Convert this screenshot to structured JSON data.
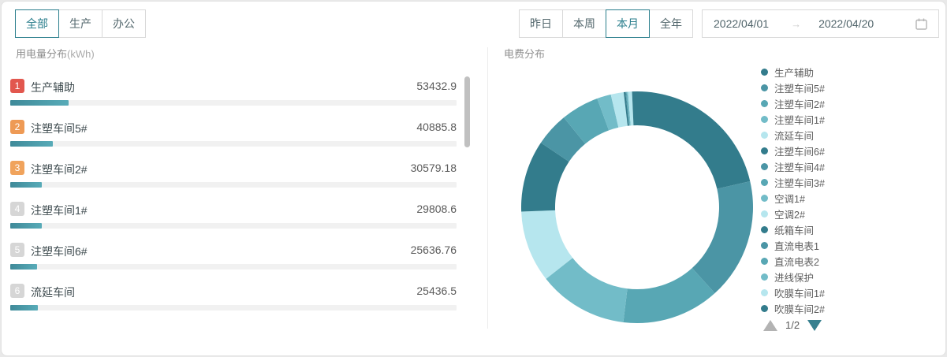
{
  "page": {
    "background": "#e9e9e9",
    "card_background": "#ffffff",
    "accent": "#2a7e8c"
  },
  "filters": {
    "category_tabs": [
      {
        "label": "全部",
        "selected": true
      },
      {
        "label": "生产",
        "selected": false
      },
      {
        "label": "办公",
        "selected": false
      }
    ],
    "period_tabs": [
      {
        "label": "昨日",
        "selected": false
      },
      {
        "label": "本周",
        "selected": false
      },
      {
        "label": "本月",
        "selected": true
      },
      {
        "label": "全年",
        "selected": false
      }
    ],
    "date_range": {
      "start": "2022/04/01",
      "separator": "→",
      "end": "2022/04/20"
    }
  },
  "consumption_panel": {
    "title": "用电量分布",
    "unit": "(kWh)",
    "items": [
      {
        "rank": "1",
        "name": "生产辅助",
        "value": "53432.9",
        "badge_color": "#e2574e",
        "bar_percent": 13.1
      },
      {
        "rank": "2",
        "name": "注塑车间5#",
        "value": "40885.8",
        "badge_color": "#ee9a55",
        "bar_percent": 9.6
      },
      {
        "rank": "3",
        "name": "注塑车间2#",
        "value": "30579.18",
        "badge_color": "#f0a35c",
        "bar_percent": 7.0
      },
      {
        "rank": "4",
        "name": "注塑车间1#",
        "value": "29808.6",
        "badge_color": "#d6d6d6",
        "bar_percent": 7.1
      },
      {
        "rank": "5",
        "name": "注塑车间6#",
        "value": "25636.76",
        "badge_color": "#d6d6d6",
        "bar_percent": 6.0
      },
      {
        "rank": "6",
        "name": "流延车间",
        "value": "25436.5",
        "badge_color": "#d6d6d6",
        "bar_percent": 6.2
      }
    ]
  },
  "cost_panel": {
    "title": "电费分布",
    "pagination": {
      "label": "1/2",
      "up_arrow_color": "#b3b3b3",
      "down_arrow_color": "#37808f"
    }
  },
  "chart_data": {
    "type": "pie",
    "subtype": "donut",
    "title": "电费分布",
    "legend_position": "right",
    "legend_pagination": "1/2",
    "start_angle_deg": 0,
    "clockwise": true,
    "palette": [
      "#337c8c",
      "#4b95a5",
      "#58a7b4",
      "#72bcc8",
      "#b6e6ee"
    ],
    "series": [
      {
        "name": "生产辅助",
        "percent": 21.4,
        "color": "#337c8c"
      },
      {
        "name": "注塑车间5#",
        "percent": 16.9,
        "color": "#4b95a5"
      },
      {
        "name": "注塑车间2#",
        "percent": 13.6,
        "color": "#58a7b4"
      },
      {
        "name": "注塑车间1#",
        "percent": 12.5,
        "color": "#72bcc8"
      },
      {
        "name": "流延车间",
        "percent": 10.0,
        "color": "#b6e6ee"
      },
      {
        "name": "注塑车间6#",
        "percent": 10.0,
        "color": "#337c8c"
      },
      {
        "name": "注塑车间4#",
        "percent": 4.7,
        "color": "#4b95a5"
      },
      {
        "name": "注塑车间3#",
        "percent": 5.3,
        "color": "#58a7b4"
      },
      {
        "name": "空调1#",
        "percent": 1.95,
        "color": "#72bcc8"
      },
      {
        "name": "空调2#",
        "percent": 1.8,
        "color": "#b6e6ee"
      },
      {
        "name": "纸箱车间",
        "percent": 0.25,
        "color": "#337c8c"
      },
      {
        "name": "直流电表1",
        "percent": 0.1,
        "color": "#4b95a5"
      },
      {
        "name": "直流电表2",
        "percent": 0.1,
        "color": "#58a7b4"
      },
      {
        "name": "进线保护",
        "percent": 0.15,
        "color": "#72bcc8"
      },
      {
        "name": "吹膜车间1#",
        "percent": 0.55,
        "color": "#b6e6ee"
      },
      {
        "name": "吹膜车间2#",
        "percent": 0.7,
        "color": "#337c8c"
      }
    ]
  }
}
